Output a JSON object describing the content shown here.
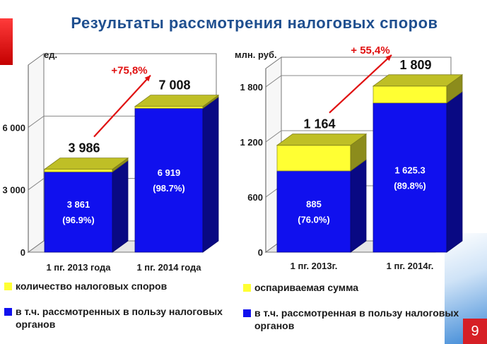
{
  "title": "Результаты рассмотрения налоговых споров",
  "page_number": "9",
  "colors": {
    "yellow": "#ffff33",
    "blue": "#1010ee",
    "arrow": "#e01010",
    "title": "#1f4f8f"
  },
  "chart_data": [
    {
      "type": "bar",
      "stacked": true,
      "unit_label": "ед.",
      "categories": [
        "1 пг. 2013 года",
        "1 пг. 2014 года"
      ],
      "ylim": [
        0,
        9000
      ],
      "yticks": [
        0,
        3000,
        6000
      ],
      "ytick_labels": [
        "0",
        "3 000",
        "6 000"
      ],
      "series": [
        {
          "name": "в т.ч. рассмотренных в пользу налоговых органов",
          "color": "#1010ee",
          "values": [
            3861,
            6919
          ],
          "labels": [
            "3 861\n(96.9%)",
            "6 919\n(98.7%)"
          ]
        },
        {
          "name": "количество налоговых споров",
          "color": "#ffff33",
          "values": [
            125,
            89
          ]
        }
      ],
      "totals": [
        3986,
        7008
      ],
      "total_labels": [
        "3 986",
        "7 008"
      ],
      "growth_label": "+75,8%"
    },
    {
      "type": "bar",
      "stacked": true,
      "unit_label": "млн. руб.",
      "categories": [
        "1 пг. 2013г.",
        "1 пг. 2014г."
      ],
      "ylim": [
        0,
        2000
      ],
      "yticks": [
        0,
        600,
        1200,
        1800
      ],
      "ytick_labels": [
        "0",
        "600",
        "1 200",
        "1 800"
      ],
      "series": [
        {
          "name": "в т.ч. рассмотренная в пользу налоговых органов",
          "color": "#1010ee",
          "values": [
            885,
            1625.3
          ],
          "labels": [
            "885\n(76.0%)",
            "1 625.3\n(89.8%)"
          ]
        },
        {
          "name": "оспариваемая сумма",
          "color": "#ffff33",
          "values": [
            279,
            183.7
          ]
        }
      ],
      "totals": [
        1164,
        1809
      ],
      "total_labels": [
        "1 164",
        "1 809"
      ],
      "growth_label": "+ 55,4%"
    }
  ],
  "legends": [
    {
      "color": "#ffff33",
      "text": "количество налоговых споров"
    },
    {
      "color": "#1010ee",
      "text": "в т.ч. рассмотренных в пользу налоговых органов"
    },
    {
      "color": "#ffff33",
      "text": "оспариваемая сумма"
    },
    {
      "color": "#1010ee",
      "text": "в т.ч. рассмотренная в пользу налоговых органов"
    }
  ]
}
